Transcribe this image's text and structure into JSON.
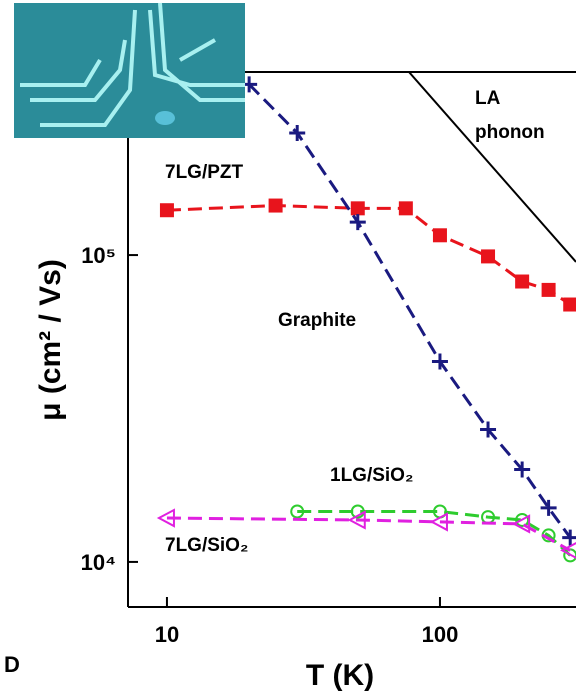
{
  "chart_data": {
    "type": "line",
    "panel_label": "D",
    "x_label": "T (K)",
    "y_label": "μ (cm² / Vs)",
    "log_x": true,
    "log_y": true,
    "xlim": [
      7.2,
      315
    ],
    "ylim": [
      7130,
      395000
    ],
    "xticks": [
      10,
      100
    ],
    "yticks": [
      {
        "value": 10000,
        "label": "10⁴"
      },
      {
        "value": 100000,
        "label": "10⁵"
      }
    ],
    "series": [
      {
        "name": "7LG/PZT",
        "color": "#e8141c",
        "marker": "square",
        "dashed": true,
        "x": [
          10,
          25,
          50,
          75,
          100,
          150,
          200,
          250,
          300
        ],
        "values": [
          140000,
          145000,
          142000,
          142000,
          116000,
          99000,
          82000,
          77000,
          69000
        ]
      },
      {
        "name": "Graphite",
        "color": "#1a1a80",
        "marker": "plus",
        "dashed": true,
        "x": [
          20,
          30,
          50,
          100,
          150,
          200,
          250,
          300
        ],
        "values": [
          360000,
          250000,
          128000,
          45000,
          27000,
          20000,
          15000,
          12000
        ]
      },
      {
        "name": "1LG/SiO₂",
        "color": "#2ecc2e",
        "marker": "circle",
        "dashed": true,
        "x": [
          30,
          50,
          100,
          150,
          200,
          250,
          300
        ],
        "values": [
          14600,
          14600,
          14600,
          14000,
          13700,
          12200,
          10500
        ]
      },
      {
        "name": "7LG/SiO₂",
        "color": "#e020e0",
        "marker": "triangle",
        "dashed": true,
        "x": [
          10,
          50,
          100,
          200,
          300
        ],
        "values": [
          13900,
          13700,
          13500,
          13300,
          10900
        ]
      },
      {
        "name": "LA phonon",
        "color": "#000000",
        "marker": "none",
        "dashed": false,
        "x": [
          77,
          315
        ],
        "values": [
          395000,
          95000
        ]
      }
    ]
  }
}
